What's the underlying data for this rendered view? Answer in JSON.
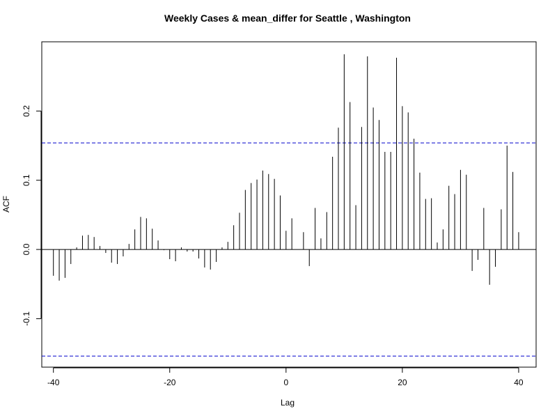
{
  "chart_data": {
    "type": "bar",
    "title": "Weekly Cases & mean_differ for Seattle , Washington",
    "xlabel": "Lag",
    "ylabel": "ACF",
    "xlim": [
      -42,
      43
    ],
    "ylim": [
      -0.17,
      0.3
    ],
    "xticks": [
      -40,
      -20,
      0,
      20,
      40
    ],
    "yticks": [
      -0.1,
      0.0,
      0.1,
      0.2
    ],
    "ytick_labels": [
      "-0.1",
      "0.0",
      "0.1",
      "0.2"
    ],
    "confidence_bounds": [
      0.154,
      -0.154
    ],
    "confidence_color": "#0000cc",
    "lags": [
      -40,
      -39,
      -38,
      -37,
      -36,
      -35,
      -34,
      -33,
      -32,
      -31,
      -30,
      -29,
      -28,
      -27,
      -26,
      -25,
      -24,
      -23,
      -22,
      -21,
      -20,
      -19,
      -18,
      -17,
      -16,
      -15,
      -14,
      -13,
      -12,
      -11,
      -10,
      -9,
      -8,
      -7,
      -6,
      -5,
      -4,
      -3,
      -2,
      -1,
      0,
      1,
      2,
      3,
      4,
      5,
      6,
      7,
      8,
      9,
      10,
      11,
      12,
      13,
      14,
      15,
      16,
      17,
      18,
      19,
      20,
      21,
      22,
      23,
      24,
      25,
      26,
      27,
      28,
      29,
      30,
      31,
      32,
      33,
      34,
      35,
      36,
      37,
      38,
      39,
      40
    ],
    "values": [
      -0.038,
      -0.045,
      -0.041,
      -0.021,
      0.003,
      0.02,
      0.021,
      0.018,
      0.005,
      -0.005,
      -0.019,
      -0.021,
      -0.01,
      0.008,
      0.029,
      0.047,
      0.045,
      0.03,
      0.013,
      -0.001,
      -0.014,
      -0.017,
      0.003,
      -0.003,
      -0.003,
      -0.013,
      -0.026,
      -0.029,
      -0.018,
      0.003,
      0.011,
      0.035,
      0.053,
      0.086,
      0.096,
      0.101,
      0.114,
      0.109,
      0.102,
      0.078,
      0.027,
      0.045,
      0.0,
      0.025,
      -0.024,
      0.06,
      0.016,
      0.054,
      0.134,
      0.176,
      0.282,
      0.213,
      0.064,
      0.177,
      0.279,
      0.205,
      0.187,
      0.141,
      0.141,
      0.277,
      0.207,
      0.198,
      0.16,
      0.111,
      0.073,
      0.074,
      0.01,
      0.029,
      0.092,
      0.08,
      0.115,
      0.108,
      -0.031,
      -0.015,
      0.06,
      -0.051,
      -0.025,
      0.058,
      0.15,
      0.112,
      0.025
    ]
  }
}
